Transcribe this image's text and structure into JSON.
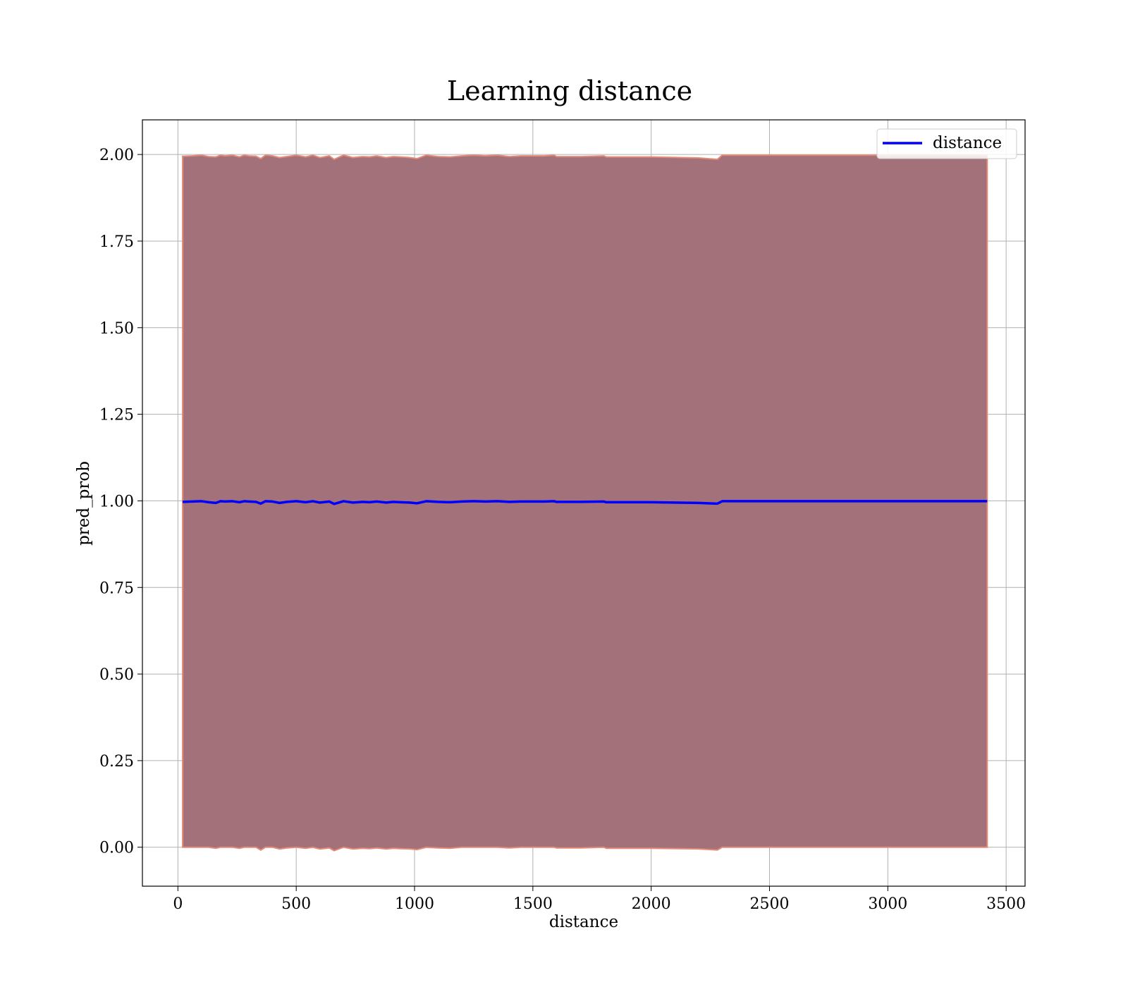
{
  "chart_data": {
    "type": "line",
    "title": "Learning distance",
    "xlabel": "distance",
    "ylabel": "pred_prob",
    "xlim": [
      -150,
      3580
    ],
    "ylim": [
      -0.1125,
      2.1
    ],
    "xticks": [
      0,
      500,
      1000,
      1500,
      2000,
      2500,
      3000,
      3500
    ],
    "yticks": [
      0.0,
      0.25,
      0.5,
      0.75,
      1.0,
      1.25,
      1.5,
      1.75,
      2.0
    ],
    "xtick_labels": [
      "0",
      "500",
      "1000",
      "1500",
      "2000",
      "2500",
      "3000",
      "3500"
    ],
    "ytick_labels": [
      "0.00",
      "0.25",
      "0.50",
      "0.75",
      "1.00",
      "1.25",
      "1.50",
      "1.75",
      "2.00"
    ],
    "grid": true,
    "legend": {
      "position": "top-right",
      "entries": [
        "distance"
      ]
    },
    "colors": {
      "line": "#0000ff",
      "band_fill": "#a3717a",
      "band_edge": "#e48a76",
      "grid": "#b0b0b0"
    },
    "series": [
      {
        "name": "distance",
        "x": [
          20,
          60,
          100,
          130,
          160,
          180,
          200,
          230,
          260,
          280,
          300,
          330,
          350,
          370,
          400,
          430,
          460,
          500,
          540,
          570,
          600,
          640,
          660,
          700,
          740,
          780,
          810,
          840,
          880,
          910,
          940,
          980,
          1010,
          1050,
          1100,
          1150,
          1200,
          1250,
          1300,
          1350,
          1400,
          1450,
          1500,
          1550,
          1590,
          1600,
          1700,
          1800,
          1810,
          2000,
          2200,
          2280,
          2300,
          2500,
          2800,
          3100,
          3420
        ],
        "y": [
          0.997,
          0.998,
          0.999,
          0.996,
          0.994,
          0.999,
          0.998,
          0.999,
          0.996,
          0.999,
          0.998,
          0.997,
          0.992,
          0.999,
          0.998,
          0.994,
          0.997,
          0.999,
          0.996,
          0.999,
          0.995,
          0.998,
          0.991,
          0.999,
          0.995,
          0.997,
          0.996,
          0.998,
          0.995,
          0.997,
          0.996,
          0.995,
          0.993,
          0.999,
          0.997,
          0.996,
          0.998,
          0.999,
          0.998,
          0.999,
          0.997,
          0.998,
          0.998,
          0.998,
          0.999,
          0.997,
          0.997,
          0.998,
          0.996,
          0.996,
          0.994,
          0.992,
          0.999,
          0.999,
          0.999,
          0.999,
          0.999
        ],
        "band_lower": [
          0.0,
          0.0,
          0.0,
          0.0,
          -0.003,
          0.0,
          0.0,
          0.0,
          -0.003,
          0.0,
          0.0,
          0.0,
          -0.008,
          0.0,
          0.0,
          -0.005,
          -0.002,
          0.0,
          -0.003,
          0.0,
          -0.005,
          -0.002,
          -0.01,
          0.0,
          -0.005,
          -0.003,
          -0.004,
          -0.002,
          -0.005,
          -0.003,
          -0.004,
          -0.005,
          -0.007,
          0.0,
          -0.002,
          -0.003,
          0.0,
          0.0,
          0.0,
          0.0,
          -0.002,
          0.0,
          0.0,
          0.0,
          0.0,
          -0.002,
          -0.002,
          0.0,
          -0.003,
          -0.003,
          -0.005,
          -0.008,
          0.0,
          0.0,
          0.0,
          0.0,
          0.0
        ],
        "band_upper": [
          1.995,
          1.996,
          1.998,
          1.994,
          1.993,
          1.998,
          1.996,
          1.998,
          1.993,
          1.998,
          1.996,
          1.995,
          1.988,
          1.998,
          1.996,
          1.991,
          1.994,
          1.998,
          1.993,
          1.998,
          1.991,
          1.996,
          1.986,
          1.998,
          1.991,
          1.994,
          1.993,
          1.996,
          1.991,
          1.994,
          1.993,
          1.991,
          1.988,
          1.998,
          1.994,
          1.993,
          1.996,
          1.998,
          1.996,
          1.998,
          1.994,
          1.996,
          1.996,
          1.996,
          1.998,
          1.994,
          1.994,
          1.996,
          1.993,
          1.993,
          1.99,
          1.986,
          1.998,
          1.998,
          1.998,
          1.998,
          1.998
        ]
      }
    ]
  }
}
